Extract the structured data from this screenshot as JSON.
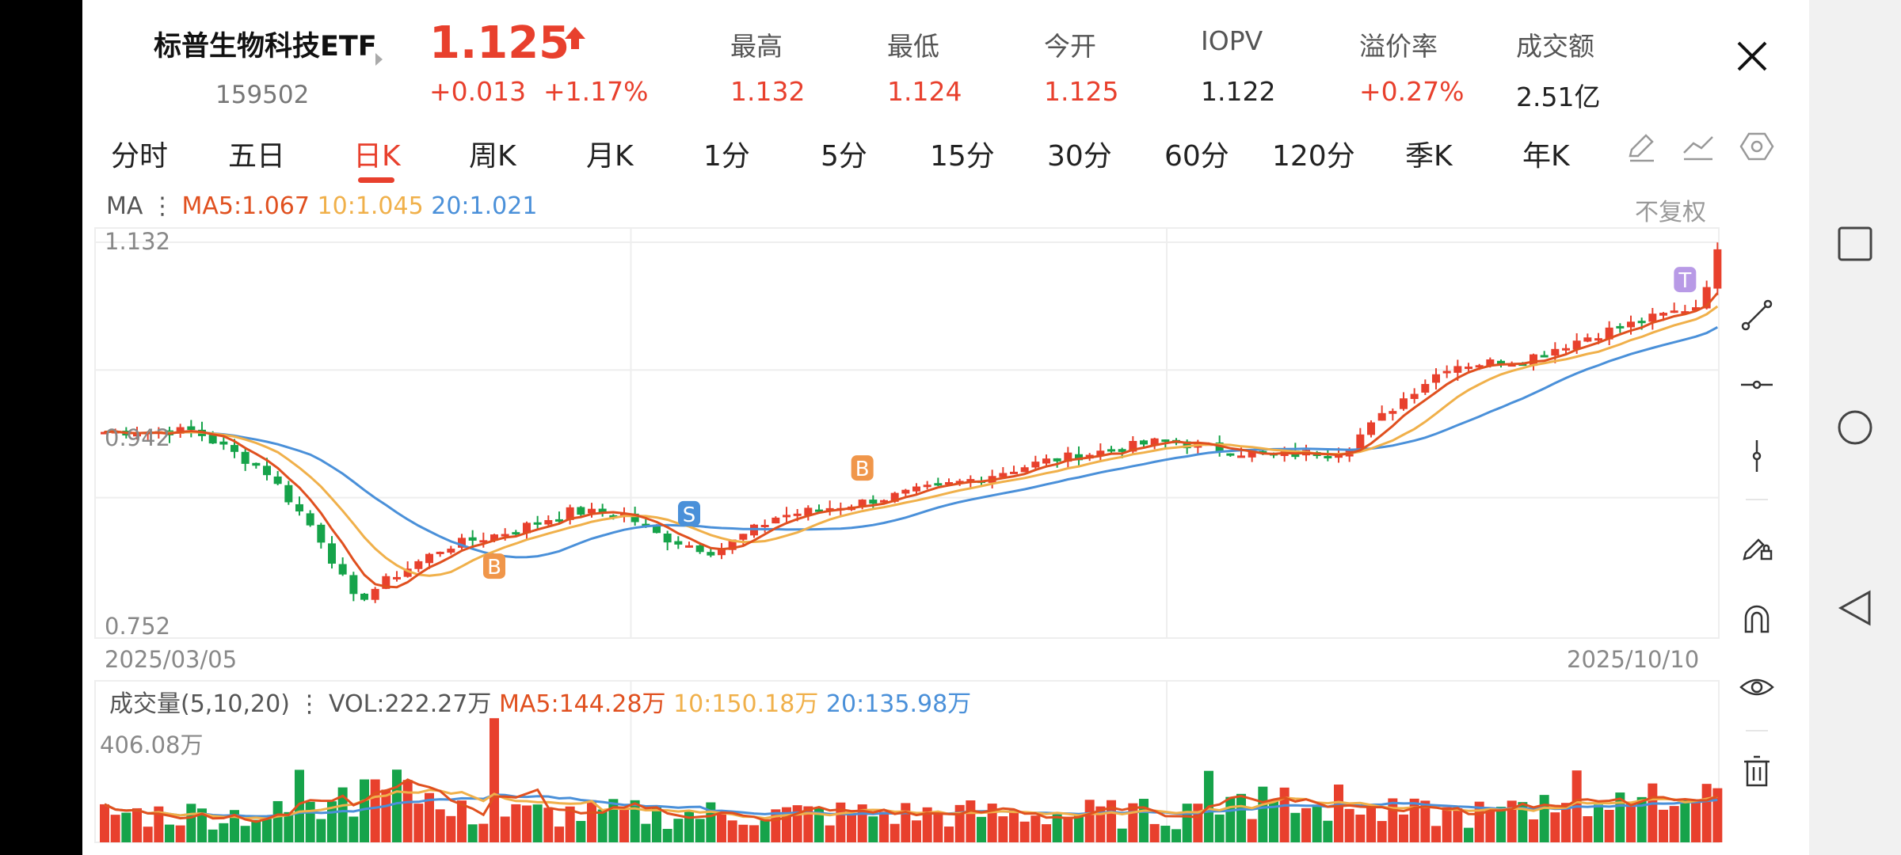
{
  "header": {
    "name": "标普生物科技ETF",
    "code": "159502",
    "price": "1.125",
    "change": "+0.013",
    "change_pct": "+1.17%",
    "stats": [
      {
        "label": "最高",
        "value": "1.132",
        "color": "#e8402d"
      },
      {
        "label": "最低",
        "value": "1.124",
        "color": "#e8402d"
      },
      {
        "label": "今开",
        "value": "1.125",
        "color": "#e8402d"
      },
      {
        "label": "IOPV",
        "value": "1.122",
        "color": "#222222"
      },
      {
        "label": "溢价率",
        "value": "+0.27%",
        "color": "#e8402d"
      },
      {
        "label": "成交额",
        "value": "2.51亿",
        "color": "#222222"
      }
    ]
  },
  "tabs": [
    "分时",
    "五日",
    "日K",
    "周K",
    "月K",
    "1分",
    "5分",
    "15分",
    "30分",
    "60分",
    "120分",
    "季K",
    "年K"
  ],
  "active_tab": "日K",
  "toolbar_icons": [
    "pencil-icon",
    "trend-line-icon",
    "hexagon-settings-icon"
  ],
  "ma_legend": {
    "prefix": "MA",
    "ma5": "MA5:1.067",
    "ma10": "10:1.045",
    "ma20": "20:1.021"
  },
  "adjust_label": "不复权",
  "price_axis": {
    "max_label": "1.132",
    "mid_label": "0.942",
    "min_label": "0.752"
  },
  "date_axis": {
    "start": "2025/03/05",
    "end": "2025/10/10"
  },
  "markers": [
    "B",
    "S",
    "B",
    "T"
  ],
  "volume_legend": {
    "prefix": "成交量(5,10,20)",
    "vol": "VOL:222.27万",
    "ma5": "MA5:144.28万",
    "ma10": "10:150.18万",
    "ma20": "20:135.98万"
  },
  "volume_axis": {
    "max_label": "406.08万"
  },
  "side_tools": [
    "line-segment-icon",
    "horizontal-line-icon",
    "vertical-line-icon",
    "draw-lock-icon",
    "magnet-icon",
    "eye-icon",
    "trash-icon"
  ],
  "colors": {
    "up": "#e8402d",
    "down": "#16a34a",
    "ma5": "#e0501f",
    "ma10": "#f0b04a",
    "ma20": "#4a90d9",
    "marker_b": "#f0964a",
    "marker_s": "#4a90d9",
    "marker_t": "#b89ae6"
  },
  "chart_data": {
    "type": "candlestick",
    "ylim": [
      0.752,
      1.132
    ],
    "dates": [
      "2025/03/05",
      "2025/10/10"
    ],
    "anchors": {
      "start_close": 0.944,
      "low_point_approx": 0.76,
      "bottom_region_approx": 0.81,
      "mid_region_approx": 0.92,
      "late_region_approx": 0.99,
      "last_close": 1.125
    },
    "ma5_last": 1.067,
    "ma10_last": 1.045,
    "ma20_last": 1.021,
    "volume_max": "406.08万",
    "volume_last": "222.27万",
    "volume_ma5_last": "144.28万",
    "volume_ma10_last": "150.18万",
    "volume_ma20_last": "135.98万"
  }
}
